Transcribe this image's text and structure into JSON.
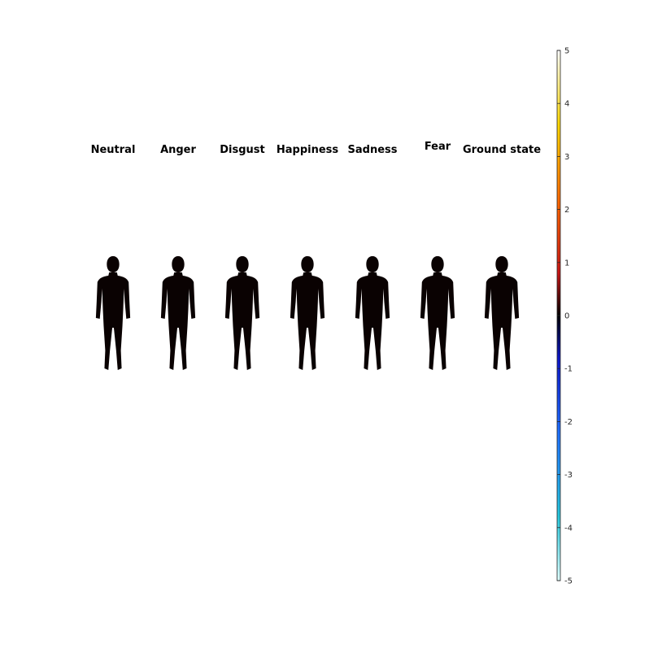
{
  "chart_data": {
    "type": "heatmap",
    "panels": [
      {
        "title": "Neutral"
      },
      {
        "title": "Anger"
      },
      {
        "title": "Disgust"
      },
      {
        "title": "Happiness"
      },
      {
        "title": "Sadness"
      },
      {
        "title": "Fear"
      },
      {
        "title": "Ground state"
      }
    ],
    "colorbar": {
      "clim": [
        -5,
        5
      ],
      "ticks": [
        {
          "value": 5,
          "label": "5"
        },
        {
          "value": 4,
          "label": "4"
        },
        {
          "value": 3,
          "label": "3"
        },
        {
          "value": 2,
          "label": "2"
        },
        {
          "value": 1,
          "label": "1"
        },
        {
          "value": 0,
          "label": "0"
        },
        {
          "value": -1,
          "label": "-1"
        },
        {
          "value": -2,
          "label": "-2"
        },
        {
          "value": -3,
          "label": "-3"
        },
        {
          "value": -4,
          "label": "-4"
        },
        {
          "value": -5,
          "label": "-5"
        }
      ],
      "colormap": [
        "#e0ffff",
        "#26c6da",
        "#1e6fff",
        "#0a14c8",
        "#000000",
        "#c81414",
        "#ff6a00",
        "#ffd700",
        "#ffffff"
      ]
    }
  }
}
